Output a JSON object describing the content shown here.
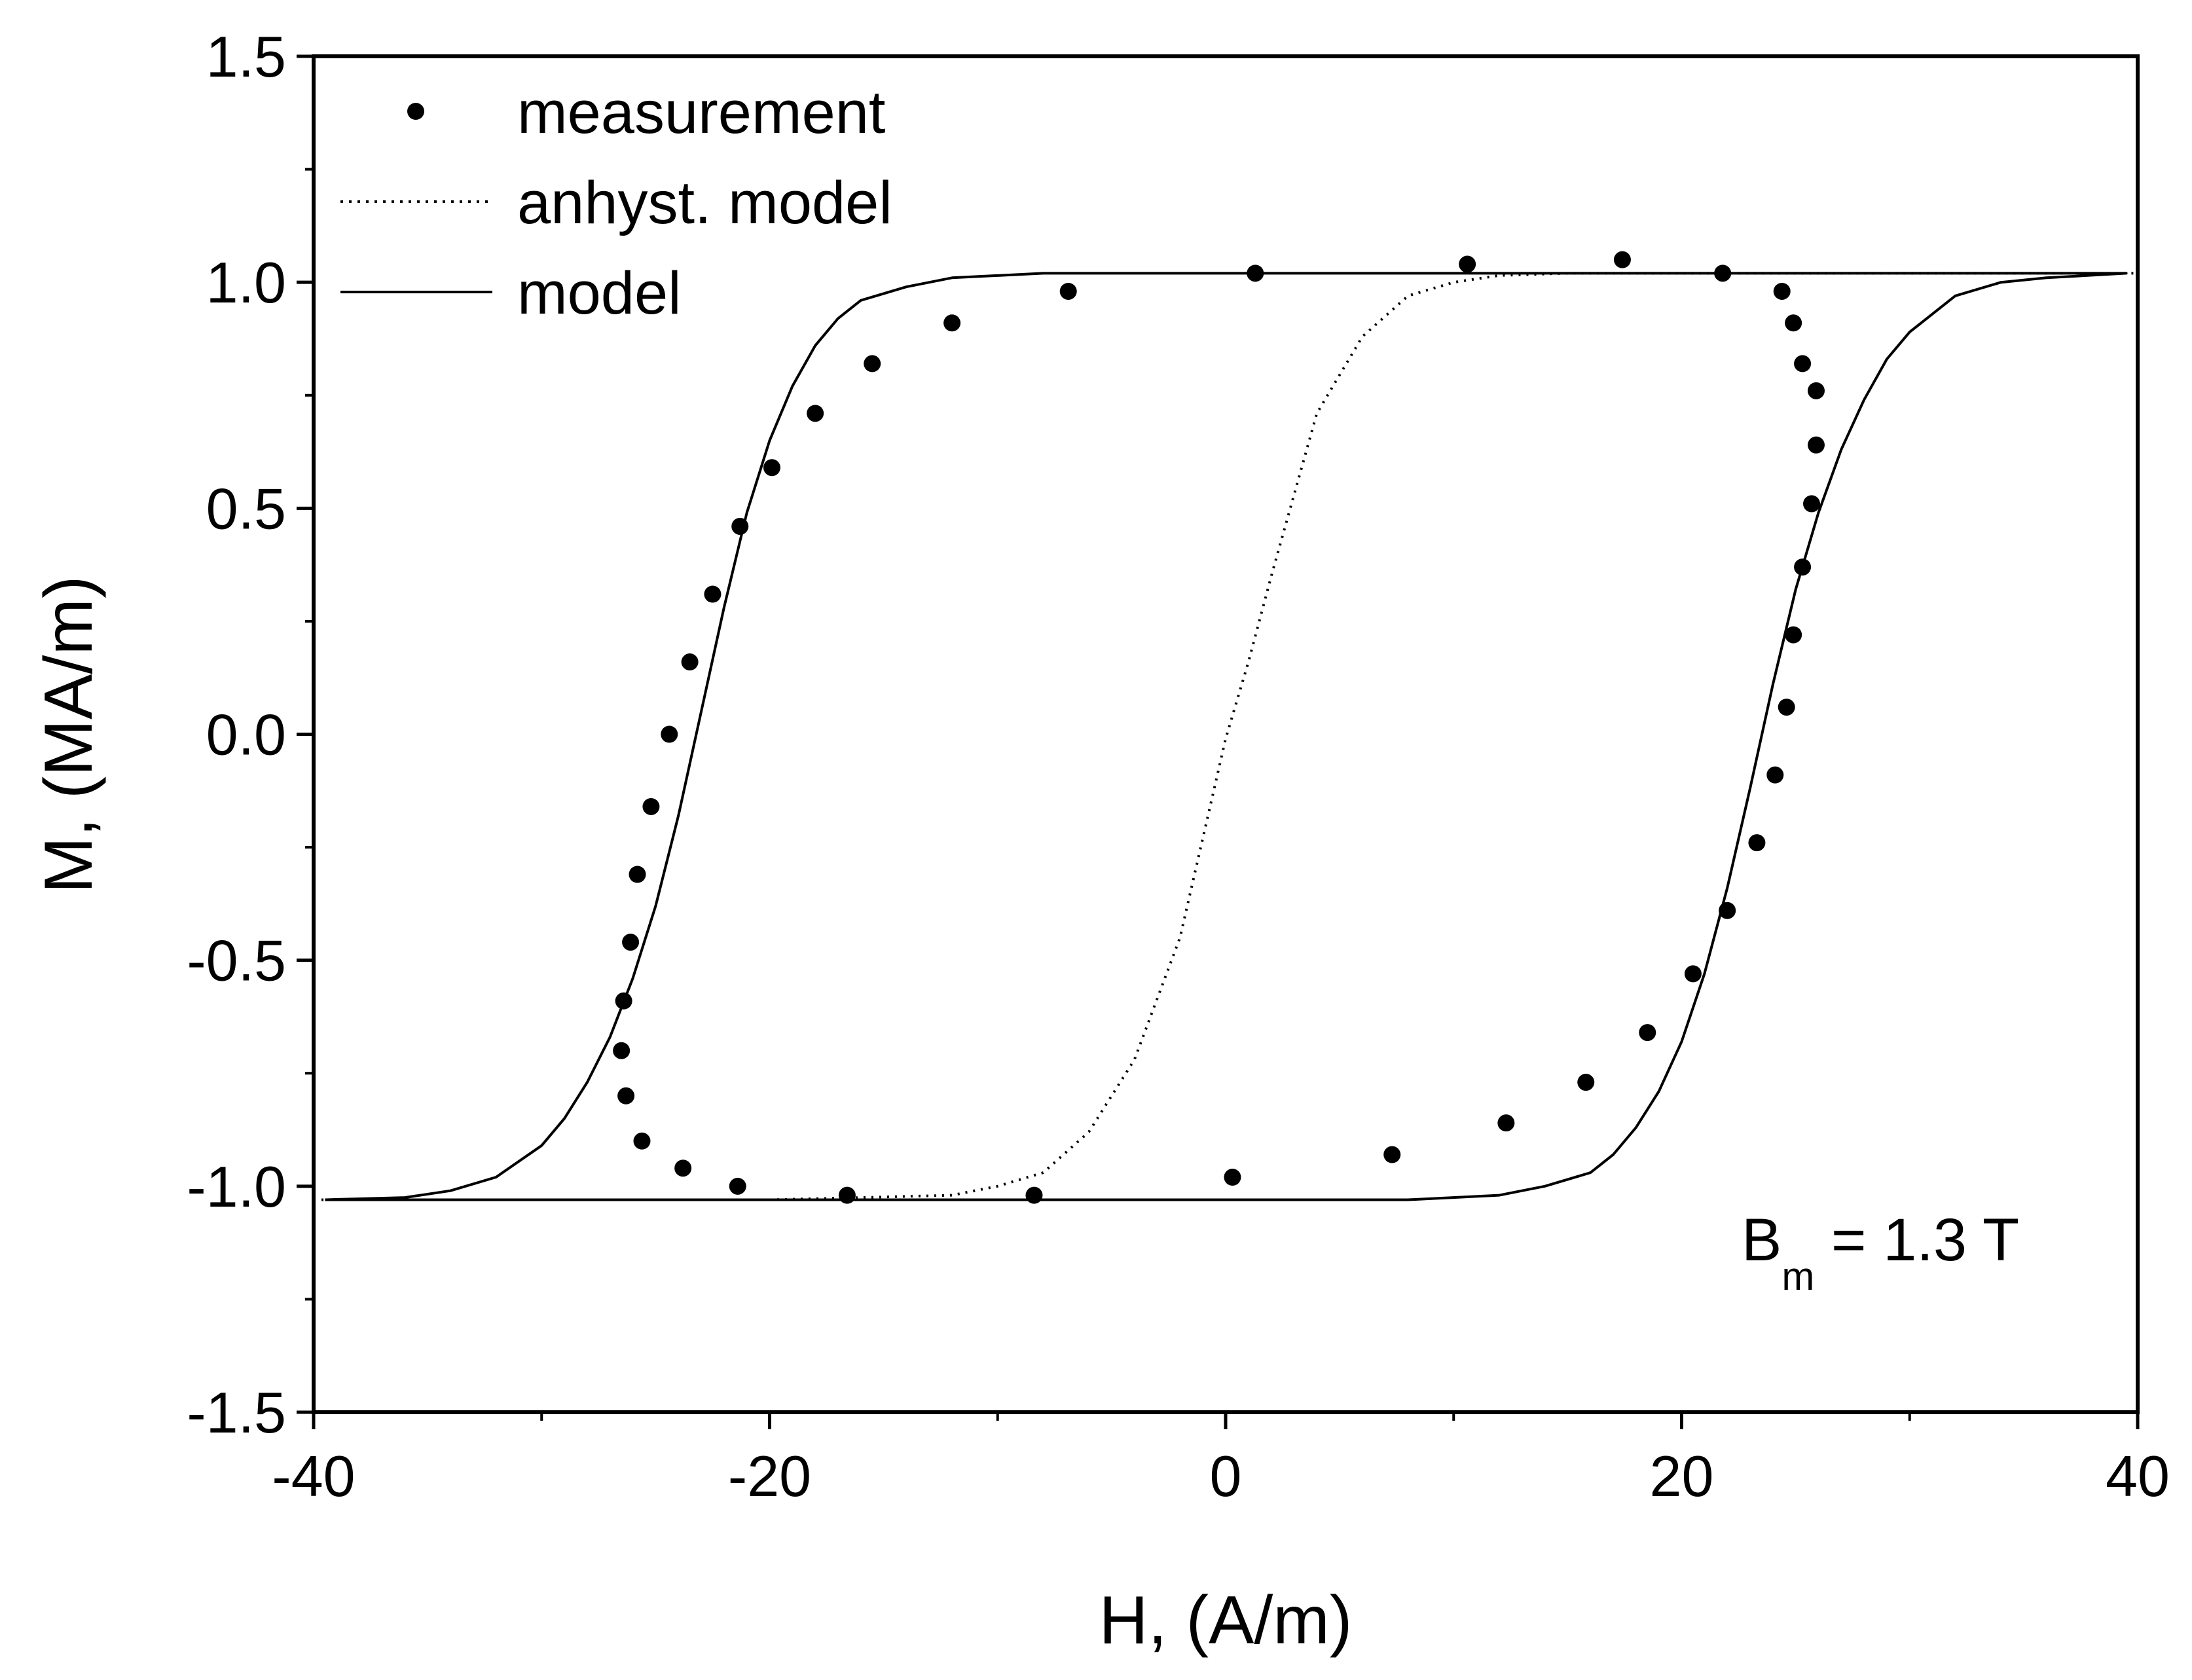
{
  "chart_data": {
    "type": "scatter",
    "xlabel": "H, (A/m)",
    "ylabel": "M, (MA/m)",
    "xlim": [
      -40,
      40
    ],
    "ylim": [
      -1.5,
      1.5
    ],
    "xticks": [
      -40,
      -20,
      0,
      20,
      40
    ],
    "xtick_labels": [
      "-40",
      "-20",
      "0",
      "20",
      "40"
    ],
    "yticks": [
      -1.5,
      -1.0,
      -0.5,
      0.0,
      0.5,
      1.0,
      1.5
    ],
    "ytick_labels": [
      "-1.5",
      "-1.0",
      "-0.5",
      "0.0",
      "0.5",
      "1.0",
      "1.5"
    ],
    "grid": false,
    "legend_position": "top-left",
    "annotation": {
      "main": "B",
      "sub": "m",
      "rest": " = 1.3 T"
    },
    "series": [
      {
        "name": "measurement",
        "style": "markers",
        "color": "#000000",
        "points": [
          [
            -26.3,
            -0.8
          ],
          [
            -25.6,
            -0.9
          ],
          [
            -23.8,
            -0.96
          ],
          [
            -21.4,
            -1.0
          ],
          [
            -16.6,
            -1.02
          ],
          [
            -8.4,
            -1.02
          ],
          [
            0.3,
            -0.98
          ],
          [
            7.3,
            -0.93
          ],
          [
            12.3,
            -0.86
          ],
          [
            15.8,
            -0.77
          ],
          [
            18.5,
            -0.66
          ],
          [
            20.5,
            -0.53
          ],
          [
            22.0,
            -0.39
          ],
          [
            23.3,
            -0.24
          ],
          [
            24.1,
            -0.09
          ],
          [
            24.6,
            0.06
          ],
          [
            24.9,
            0.22
          ],
          [
            25.3,
            0.37
          ],
          [
            25.7,
            0.51
          ],
          [
            25.9,
            0.64
          ],
          [
            25.9,
            0.76
          ],
          [
            25.3,
            0.82
          ],
          [
            24.9,
            0.91
          ],
          [
            24.4,
            0.98
          ],
          [
            21.8,
            1.02
          ],
          [
            17.4,
            1.05
          ],
          [
            10.6,
            1.04
          ],
          [
            1.3,
            1.02
          ],
          [
            -6.9,
            0.98
          ],
          [
            -12.0,
            0.91
          ],
          [
            -15.5,
            0.82
          ],
          [
            -18.0,
            0.71
          ],
          [
            -19.9,
            0.59
          ],
          [
            -21.3,
            0.46
          ],
          [
            -22.5,
            0.31
          ],
          [
            -23.5,
            0.16
          ],
          [
            -24.4,
            0.0
          ],
          [
            -25.2,
            -0.16
          ],
          [
            -25.8,
            -0.31
          ],
          [
            -26.1,
            -0.46
          ],
          [
            -26.4,
            -0.59
          ],
          [
            -26.5,
            -0.7
          ]
        ]
      },
      {
        "name": "anhyst. model",
        "style": "dotted",
        "color": "#000000",
        "points": [
          [
            -40,
            -1.03
          ],
          [
            -20,
            -1.03
          ],
          [
            -16,
            -1.025
          ],
          [
            -12,
            -1.02
          ],
          [
            -10,
            -1.0
          ],
          [
            -8,
            -0.97
          ],
          [
            -6,
            -0.88
          ],
          [
            -4,
            -0.72
          ],
          [
            -2,
            -0.45
          ],
          [
            0,
            -0.01
          ],
          [
            1,
            0.16
          ],
          [
            2,
            0.35
          ],
          [
            4,
            0.71
          ],
          [
            6,
            0.88
          ],
          [
            8,
            0.97
          ],
          [
            10,
            1.0
          ],
          [
            12,
            1.015
          ],
          [
            15,
            1.02
          ],
          [
            20,
            1.02
          ],
          [
            40,
            1.02
          ]
        ]
      },
      {
        "name": "model",
        "style": "solid",
        "color": "#000000",
        "points": [
          [
            -39.5,
            -1.03
          ],
          [
            -36,
            -1.025
          ],
          [
            -34,
            -1.01
          ],
          [
            -32,
            -0.98
          ],
          [
            -30,
            -0.91
          ],
          [
            -29,
            -0.85
          ],
          [
            -28,
            -0.77
          ],
          [
            -27,
            -0.67
          ],
          [
            -26,
            -0.54
          ],
          [
            -25,
            -0.38
          ],
          [
            -24,
            -0.18
          ],
          [
            -23,
            0.05
          ],
          [
            -22,
            0.28
          ],
          [
            -21,
            0.49
          ],
          [
            -20,
            0.65
          ],
          [
            -19,
            0.77
          ],
          [
            -18,
            0.86
          ],
          [
            -17,
            0.92
          ],
          [
            -16,
            0.96
          ],
          [
            -14,
            0.99
          ],
          [
            -12,
            1.01
          ],
          [
            -8,
            1.02
          ],
          [
            0,
            1.02
          ],
          [
            10,
            1.02
          ],
          [
            39.5,
            1.02
          ],
          [
            36,
            1.01
          ],
          [
            34,
            1.0
          ],
          [
            32,
            0.97
          ],
          [
            30,
            0.89
          ],
          [
            29,
            0.83
          ],
          [
            28,
            0.74
          ],
          [
            27,
            0.63
          ],
          [
            26,
            0.49
          ],
          [
            25,
            0.32
          ],
          [
            24,
            0.11
          ],
          [
            23,
            -0.12
          ],
          [
            22,
            -0.34
          ],
          [
            21,
            -0.53
          ],
          [
            20,
            -0.68
          ],
          [
            19,
            -0.79
          ],
          [
            18,
            -0.87
          ],
          [
            17,
            -0.93
          ],
          [
            16,
            -0.97
          ],
          [
            14,
            -1.0
          ],
          [
            12,
            -1.02
          ],
          [
            8,
            -1.03
          ],
          [
            0,
            -1.03
          ],
          [
            -10,
            -1.03
          ],
          [
            -39.5,
            -1.03
          ]
        ]
      }
    ]
  }
}
